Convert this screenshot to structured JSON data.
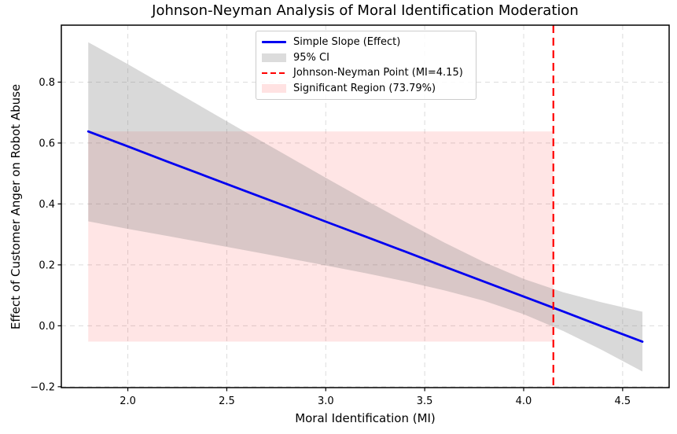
{
  "chart_data": {
    "type": "line",
    "title": "Johnson-Neyman Analysis of Moral Identification Moderation",
    "xlabel": "Moral Identification (MI)",
    "ylabel": "Effect of Customer Anger on Robot Abuse",
    "xlim": [
      1.664,
      4.735
    ],
    "ylim": [
      -0.203,
      0.987
    ],
    "xticks": [
      2.0,
      2.5,
      3.0,
      3.5,
      4.0,
      4.5
    ],
    "xtick_labels": [
      "2.0",
      "2.5",
      "3.0",
      "3.5",
      "4.0",
      "4.5"
    ],
    "yticks": [
      -0.2,
      0.0,
      0.2,
      0.4,
      0.6,
      0.8
    ],
    "ytick_labels": [
      "−0.2",
      "0.0",
      "0.2",
      "0.4",
      "0.6",
      "0.8"
    ],
    "grid": true,
    "legend_position": "upper center",
    "x": [
      1.8,
      2.0,
      2.2,
      2.4,
      2.6,
      2.8,
      3.0,
      3.2,
      3.4,
      3.6,
      3.8,
      4.0,
      4.2,
      4.4,
      4.6
    ],
    "series": [
      {
        "name": "Simple Slope (Effect)",
        "values": [
          0.638,
          0.589,
          0.539,
          0.49,
          0.441,
          0.392,
          0.342,
          0.293,
          0.244,
          0.194,
          0.145,
          0.096,
          0.047,
          -0.003,
          -0.052
        ]
      },
      {
        "name": "95% CI upper",
        "values": [
          0.931,
          0.859,
          0.784,
          0.709,
          0.634,
          0.56,
          0.486,
          0.413,
          0.342,
          0.273,
          0.209,
          0.154,
          0.11,
          0.076,
          0.046
        ]
      },
      {
        "name": "95% CI lower",
        "values": [
          0.343,
          0.318,
          0.295,
          0.271,
          0.247,
          0.223,
          0.198,
          0.173,
          0.146,
          0.116,
          0.082,
          0.038,
          -0.017,
          -0.081,
          -0.15
        ]
      }
    ],
    "johnson_neyman_point": 4.15,
    "significant_region": {
      "x_start": 1.8,
      "x_end": 4.15,
      "y_bottom": -0.052,
      "y_top": 0.638,
      "percent": 73.79
    }
  },
  "legend": {
    "items": [
      {
        "label": "Simple Slope (Effect)",
        "swatch": "line"
      },
      {
        "label": "95% CI",
        "swatch": "patch"
      },
      {
        "label": "Johnson-Neyman Point (MI=4.15)",
        "swatch": "dash"
      },
      {
        "label": "Significant Region (73.79%)",
        "swatch": "patch"
      }
    ]
  },
  "colors": {
    "slope_line": "#0000F0",
    "jn_line": "#FF0000",
    "ci_fill": "rgba(128,128,128,0.30)",
    "sig_fill": "rgba(255,0,0,0.10)",
    "grid": "#DCDCDC",
    "axis_frame": "#000000",
    "text": "#000000",
    "legend_border": "#CCCCCC",
    "legend_bg": "rgba(255,255,255,0.85)",
    "legend_ci_swatch": "#DCDCDC",
    "legend_sig_swatch": "#FFE2E2"
  }
}
